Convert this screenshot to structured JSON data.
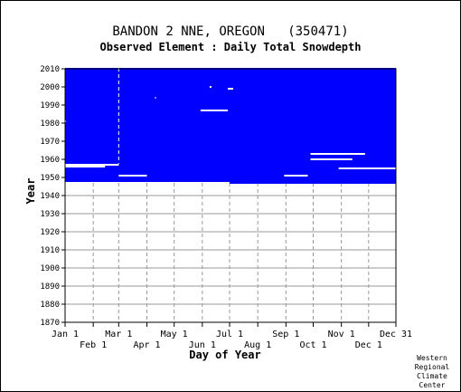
{
  "chart_data": {
    "type": "heatmap",
    "title": "BANDON 2 NNE, OREGON   (350471)",
    "subtitle": "Observed Element : Daily Total Snowdepth",
    "xlabel": "Day of Year",
    "ylabel": "Year",
    "x_ticks_row1": [
      {
        "label": "Jan 1",
        "day": 1
      },
      {
        "label": "Mar 1",
        "day": 60
      },
      {
        "label": "May 1",
        "day": 121
      },
      {
        "label": "Jul 1",
        "day": 182
      },
      {
        "label": "Sep 1",
        "day": 244
      },
      {
        "label": "Nov 1",
        "day": 305
      },
      {
        "label": "Dec 31",
        "day": 365
      }
    ],
    "x_ticks_row2": [
      {
        "label": "Feb 1",
        "day": 32
      },
      {
        "label": "Apr 1",
        "day": 91
      },
      {
        "label": "Jun 1",
        "day": 152
      },
      {
        "label": "Aug 1",
        "day": 213
      },
      {
        "label": "Oct 1",
        "day": 274
      },
      {
        "label": "Dec 1",
        "day": 335
      }
    ],
    "y_ticks": [
      2010,
      2000,
      1990,
      1980,
      1970,
      1960,
      1950,
      1940,
      1930,
      1920,
      1910,
      1900,
      1890,
      1880,
      1870
    ],
    "xlim": [
      1,
      365
    ],
    "ylim": [
      1870,
      2010
    ],
    "grid": true,
    "data_color": "#0000ff",
    "coverage": [
      {
        "year_from": 1948,
        "year_to": 2010,
        "day_from": 1,
        "day_to": 182
      },
      {
        "year_from": 1947,
        "year_to": 2010,
        "day_from": 182,
        "day_to": 365
      }
    ],
    "gaps": [
      {
        "year": 1957,
        "day_from": 1,
        "day_to": 60
      },
      {
        "year": 1956,
        "day_from": 1,
        "day_to": 45
      },
      {
        "year": 1951,
        "day_from": 60,
        "day_to": 91
      },
      {
        "year": 1987,
        "day_from": 150,
        "day_to": 180
      },
      {
        "year": 1999,
        "day_from": 180,
        "day_to": 186
      },
      {
        "year": 2000,
        "day_from": 160,
        "day_to": 162
      },
      {
        "year": 1994,
        "day_from": 100,
        "day_to": 101
      },
      {
        "year": 1951,
        "day_from": 242,
        "day_to": 268
      },
      {
        "year": 1963,
        "day_from": 271,
        "day_to": 331
      },
      {
        "year": 1960,
        "day_from": 271,
        "day_to": 317
      },
      {
        "year": 1955,
        "day_from": 302,
        "day_to": 365
      },
      {
        "year": 1981,
        "day_from": 1,
        "day_to": 2
      }
    ],
    "missing_columns": [
      {
        "day": 60,
        "year_from": 1958,
        "year_to": 2010
      }
    ]
  },
  "credit": [
    "Western",
    "Regional",
    "Climate",
    "Center"
  ]
}
